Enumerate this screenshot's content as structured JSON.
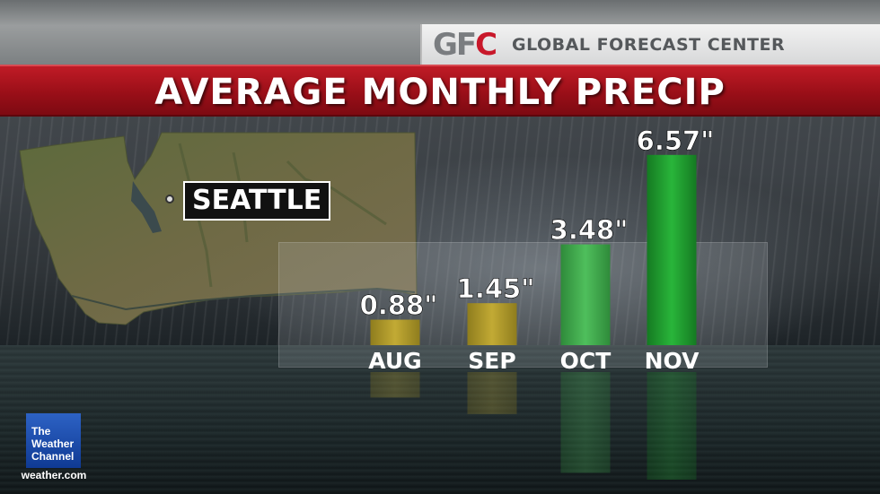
{
  "header": {
    "logo_text_gray": "GF",
    "logo_text_red": "C",
    "brand_name": "GLOBAL FORECAST CENTER"
  },
  "title": "AVERAGE MONTHLY PRECIP",
  "location": {
    "label": "SEATTLE"
  },
  "chart_data": {
    "type": "bar",
    "title": "AVERAGE MONTHLY PRECIP",
    "categories": [
      "AUG",
      "SEP",
      "OCT",
      "NOV"
    ],
    "values": [
      0.88,
      1.45,
      3.48,
      6.57
    ],
    "value_labels": [
      "0.88\"",
      "1.45\"",
      "3.48\"",
      "6.57\""
    ],
    "unit": "in",
    "ylim": [
      0,
      7
    ],
    "xlabel": "",
    "ylabel": "",
    "colors": [
      "#b09a2a",
      "#b09a2a",
      "#3aa84a",
      "#1f9e2e"
    ],
    "grid": false,
    "legend": "none"
  },
  "footer": {
    "logo_line1": "The",
    "logo_line2": "Weather",
    "logo_line3": "Channel",
    "url": "weather.com"
  },
  "colors": {
    "title_bar": "#a3121c",
    "gfc_red": "#c8182a",
    "twc_blue": "#1b4aa8"
  }
}
